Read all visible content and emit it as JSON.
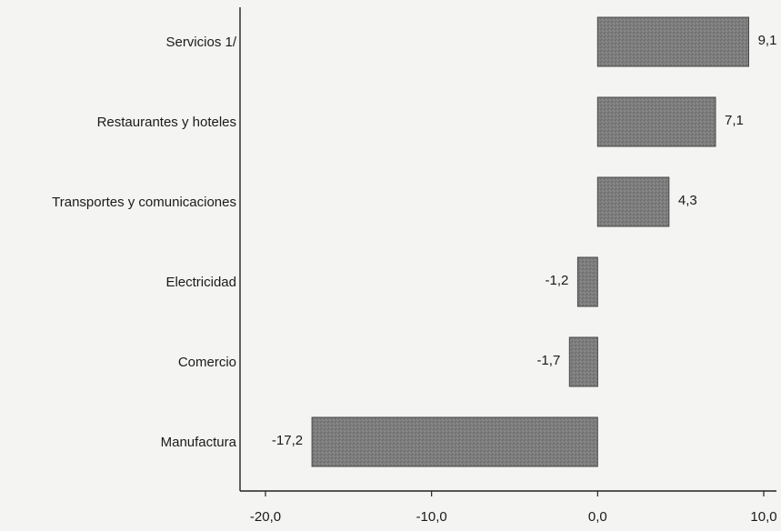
{
  "chart_data": {
    "type": "bar",
    "orientation": "horizontal",
    "categories": [
      "Servicios 1/",
      "Restaurantes y hoteles",
      "Transportes y comunicaciones",
      "Electricidad",
      "Comercio",
      "Manufactura"
    ],
    "values": [
      9.1,
      7.1,
      4.3,
      -1.2,
      -1.7,
      -17.2
    ],
    "value_labels": [
      "9,1",
      "7,1",
      "4,3",
      "-1,2",
      "-1,7",
      "-17,2"
    ],
    "title": "",
    "xlabel": "",
    "ylabel": "",
    "xlim": [
      -20,
      10
    ],
    "x_ticks": [
      -20,
      -10,
      0,
      10
    ],
    "x_tick_labels": [
      "-20,0",
      "-10,0",
      "0,0",
      "10,0"
    ],
    "grid": false,
    "legend": "none",
    "colors": {
      "bar": "#7a7a7a",
      "axis": "#222222",
      "background": "#f4f4f2"
    }
  }
}
